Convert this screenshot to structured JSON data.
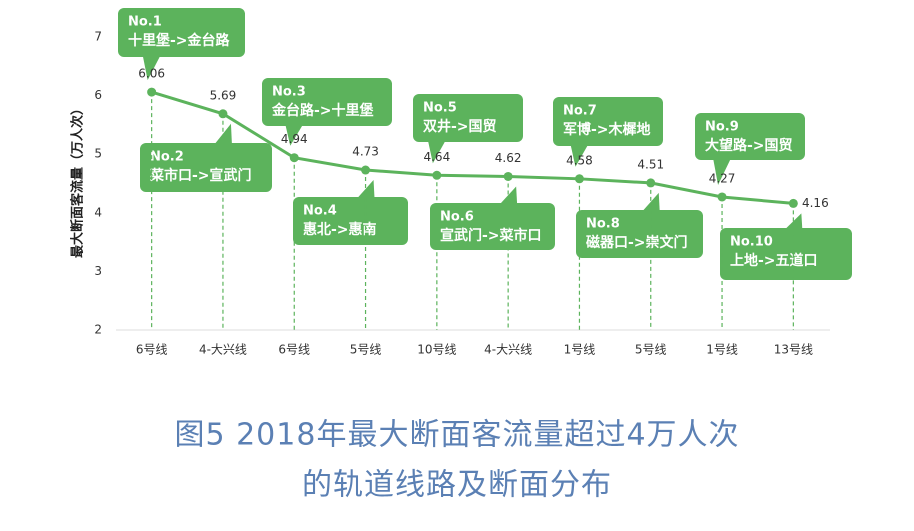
{
  "chart_data": {
    "type": "line",
    "y_label": "最大断面客流量（万人次）",
    "categories": [
      "6号线",
      "4-大兴线",
      "6号线",
      "5号线",
      "10号线",
      "4-大兴线",
      "1号线",
      "5号线",
      "1号线",
      "13号线"
    ],
    "values": [
      6.06,
      5.69,
      4.94,
      4.73,
      4.64,
      4.62,
      4.58,
      4.51,
      4.27,
      4.16
    ],
    "color": "#5cb35c",
    "ylim": [
      2,
      7
    ],
    "yticks": [
      2,
      3,
      4,
      5,
      6,
      7
    ],
    "annotations": [
      {
        "label": "No.1",
        "text": "十里堡->金台路"
      },
      {
        "label": "No.2",
        "text": "菜市口->宣武门"
      },
      {
        "label": "No.3",
        "text": "金台路->十里堡"
      },
      {
        "label": "No.4",
        "text": "惠北->惠南"
      },
      {
        "label": "No.5",
        "text": "双井->国贸"
      },
      {
        "label": "No.6",
        "text": "宣武门->菜市口"
      },
      {
        "label": "No.7",
        "text": "军博->木樨地"
      },
      {
        "label": "No.8",
        "text": "磁器口->崇文门"
      },
      {
        "label": "No.9",
        "text": "大望路->国贸"
      },
      {
        "label": "No.10",
        "text": "上地->五道口"
      }
    ],
    "caption": [
      "图5 2018年最大断面客流量超过4万人次",
      "的轨道线路及断面分布"
    ]
  }
}
